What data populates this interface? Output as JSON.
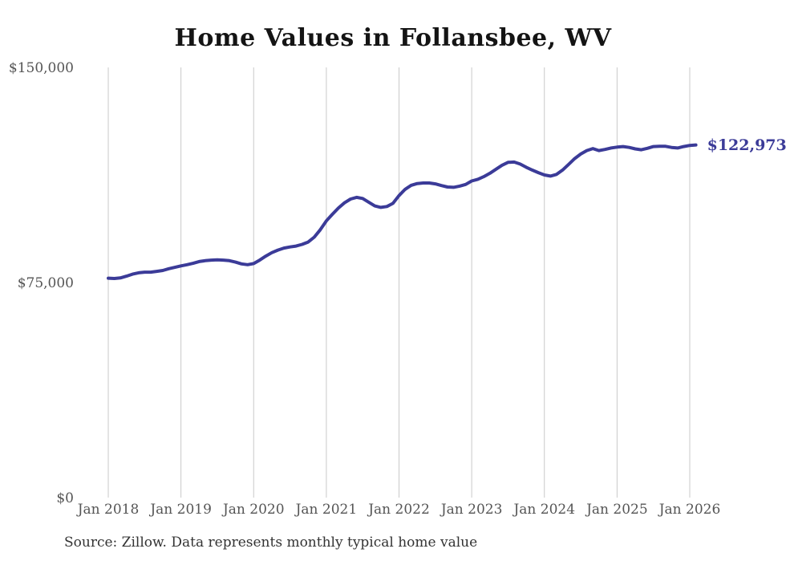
{
  "title": "Home Values in Follansbee, WV",
  "source_note": "Source: Zillow. Data represents monthly typical home value",
  "colors": {
    "line": "#3b3b98",
    "end_label": "#3b3b98",
    "grid": "#c9c9c9",
    "axis_text": "#555555",
    "title_text": "#141414",
    "source_text": "#333333",
    "background": "#ffffff"
  },
  "chart_data": {
    "type": "line",
    "title": "Home Values in Follansbee, WV",
    "xlabel": "",
    "ylabel": "",
    "ylim": [
      0,
      150000
    ],
    "grid": "vertical-only",
    "legend": "none",
    "y_tick_values": [
      0,
      75000,
      150000
    ],
    "y_tick_labels": [
      "$0",
      "$75,000",
      "$150,000"
    ],
    "x_tick_labels": [
      "Jan 2018",
      "Jan 2019",
      "Jan 2020",
      "Jan 2021",
      "Jan 2022",
      "Jan 2023",
      "Jan 2024",
      "Jan 2025",
      "Jan 2026"
    ],
    "frequency": "monthly",
    "last_value": 122973,
    "last_value_label": "$122,973",
    "series": [
      {
        "name": "Typical home value",
        "months": [
          "2018-01",
          "2018-02",
          "2018-03",
          "2018-04",
          "2018-05",
          "2018-06",
          "2018-07",
          "2018-08",
          "2018-09",
          "2018-10",
          "2018-11",
          "2018-12",
          "2019-01",
          "2019-02",
          "2019-03",
          "2019-04",
          "2019-05",
          "2019-06",
          "2019-07",
          "2019-08",
          "2019-09",
          "2019-10",
          "2019-11",
          "2019-12",
          "2020-01",
          "2020-02",
          "2020-03",
          "2020-04",
          "2020-05",
          "2020-06",
          "2020-07",
          "2020-08",
          "2020-09",
          "2020-10",
          "2020-11",
          "2020-12",
          "2021-01",
          "2021-02",
          "2021-03",
          "2021-04",
          "2021-05",
          "2021-06",
          "2021-07",
          "2021-08",
          "2021-09",
          "2021-10",
          "2021-11",
          "2021-12",
          "2022-01",
          "2022-02",
          "2022-03",
          "2022-04",
          "2022-05",
          "2022-06",
          "2022-07",
          "2022-08",
          "2022-09",
          "2022-10",
          "2022-11",
          "2022-12",
          "2023-01",
          "2023-02",
          "2023-03",
          "2023-04",
          "2023-05",
          "2023-06",
          "2023-07",
          "2023-08",
          "2023-09",
          "2023-10",
          "2023-11",
          "2023-12",
          "2024-01",
          "2024-02",
          "2024-03",
          "2024-04",
          "2024-05",
          "2024-06",
          "2024-07",
          "2024-08",
          "2024-09",
          "2024-10",
          "2024-11",
          "2024-12",
          "2025-01",
          "2025-02",
          "2025-03",
          "2025-04",
          "2025-05",
          "2025-06",
          "2025-07",
          "2025-08",
          "2025-09",
          "2025-10",
          "2025-11",
          "2025-12",
          "2026-01",
          "2026-02"
        ],
        "values": [
          76500,
          76400,
          76600,
          77200,
          77900,
          78400,
          78600,
          78600,
          78900,
          79200,
          79800,
          80300,
          80800,
          81200,
          81700,
          82300,
          82600,
          82800,
          82900,
          82800,
          82600,
          82100,
          81500,
          81200,
          81600,
          82800,
          84200,
          85400,
          86300,
          87000,
          87400,
          87700,
          88300,
          89100,
          90800,
          93400,
          96500,
          98800,
          101000,
          102800,
          104100,
          104700,
          104300,
          103000,
          101700,
          101200,
          101500,
          102600,
          105300,
          107500,
          108900,
          109500,
          109700,
          109700,
          109400,
          108800,
          108300,
          108200,
          108600,
          109200,
          110400,
          111000,
          111900,
          113100,
          114500,
          115900,
          116900,
          117000,
          116300,
          115200,
          114200,
          113300,
          112500,
          112100,
          112700,
          114200,
          116200,
          118200,
          119800,
          121000,
          121700,
          121000,
          121400,
          121900,
          122200,
          122400,
          122100,
          121600,
          121300,
          121800,
          122400,
          122500,
          122500,
          122100,
          121900,
          122400,
          122800,
          122973
        ]
      }
    ]
  }
}
